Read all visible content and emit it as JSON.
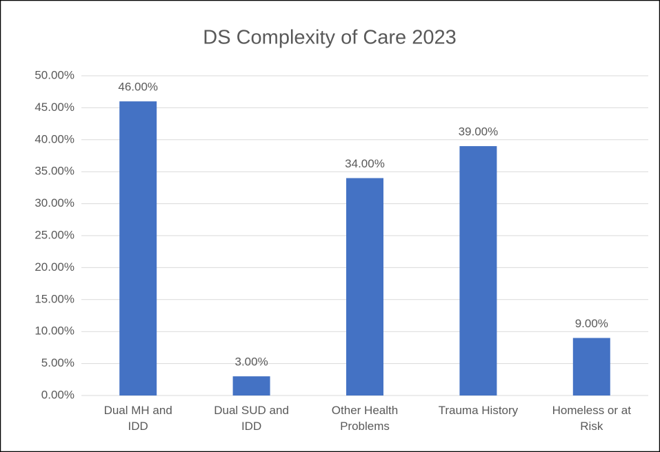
{
  "chart_data": {
    "type": "bar",
    "title": "DS Complexity of Care 2023",
    "categories": [
      "Dual MH and\nIDD",
      "Dual SUD and\nIDD",
      "Other Health\nProblems",
      "Trauma History",
      "Homeless or at\nRisk"
    ],
    "values": [
      46,
      3,
      34,
      39,
      9
    ],
    "value_labels": [
      "46.00%",
      "3.00%",
      "34.00%",
      "39.00%",
      "9.00%"
    ],
    "color": "#4472c4",
    "ylim": [
      0,
      50
    ],
    "yticks": [
      {
        "value": 0,
        "label": "0.00%"
      },
      {
        "value": 5,
        "label": "5.00%"
      },
      {
        "value": 10,
        "label": "10.00%"
      },
      {
        "value": 15,
        "label": "15.00%"
      },
      {
        "value": 20,
        "label": "20.00%"
      },
      {
        "value": 25,
        "label": "25.00%"
      },
      {
        "value": 30,
        "label": "30.00%"
      },
      {
        "value": 35,
        "label": "35.00%"
      },
      {
        "value": 40,
        "label": "40.00%"
      },
      {
        "value": 45,
        "label": "45.00%"
      },
      {
        "value": 50,
        "label": "50.00%"
      }
    ],
    "grid": true
  }
}
